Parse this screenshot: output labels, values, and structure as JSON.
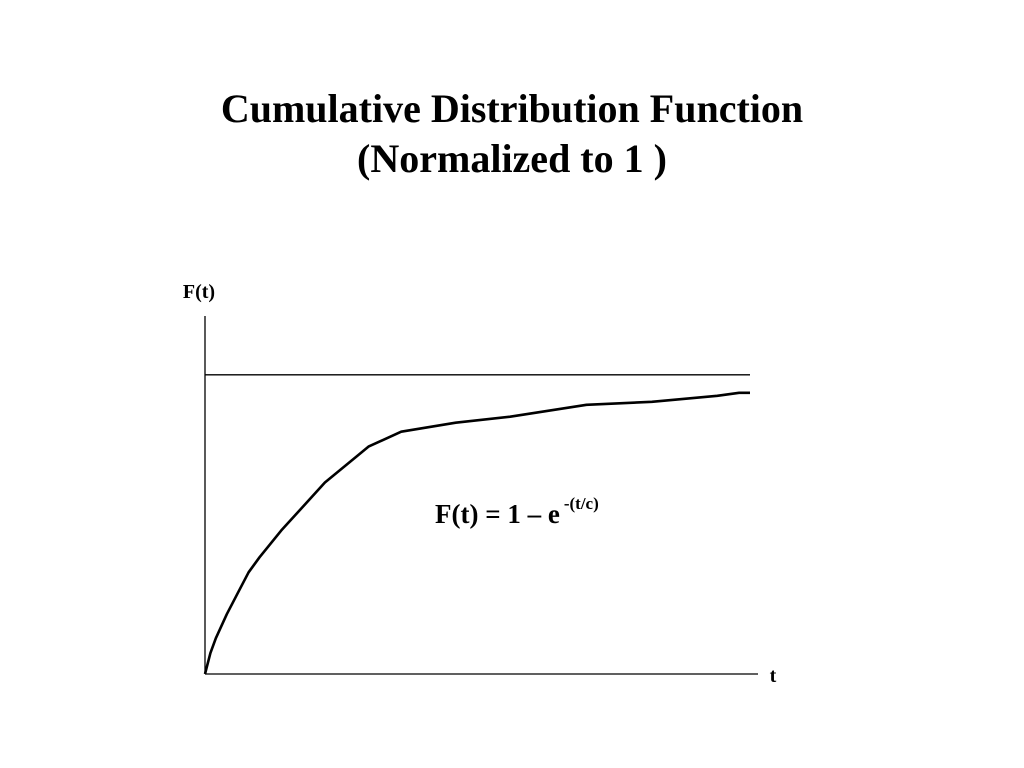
{
  "slide": {
    "title_line1": "Cumulative Distribution Function",
    "title_line2": "(Normalized to 1 )",
    "formula_main": "F(t) = 1 – e",
    "formula_exponent": "-(t/c)"
  },
  "chart_data": {
    "type": "line",
    "title": "Cumulative Distribution Function (Normalized to 1 )",
    "xlabel": "t",
    "ylabel": "F(t)",
    "xlim": [
      0,
      5
    ],
    "ylim": [
      0,
      1.2
    ],
    "grid": false,
    "asymptote": 1,
    "series": [
      {
        "x": [
          0,
          0.05,
          0.1,
          0.2,
          0.3,
          0.4,
          0.5,
          0.7,
          0.9,
          1.1,
          1.4,
          1.5,
          1.8,
          2.3,
          2.8,
          3.5,
          4.1,
          4.7,
          4.9,
          5.0
        ],
        "y": [
          0,
          0.07,
          0.12,
          0.2,
          0.27,
          0.34,
          0.39,
          0.48,
          0.56,
          0.64,
          0.73,
          0.76,
          0.81,
          0.84,
          0.86,
          0.9,
          0.91,
          0.93,
          0.94,
          0.94
        ]
      }
    ]
  }
}
